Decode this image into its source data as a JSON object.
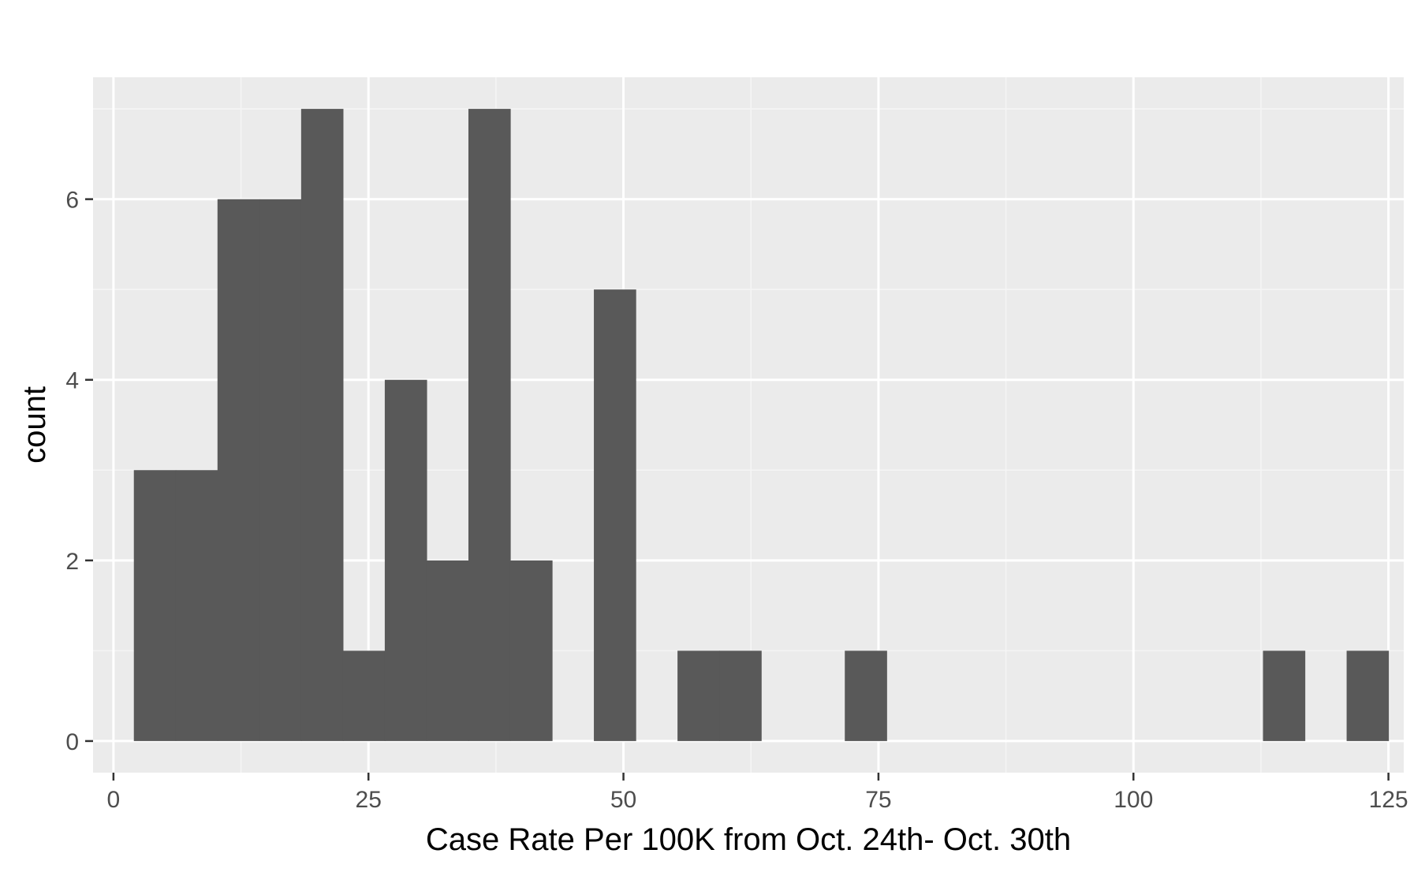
{
  "chart_data": {
    "type": "bar",
    "xlabel": "Case Rate Per 100K from Oct. 24th- Oct. 30th",
    "ylabel": "count",
    "xlim": [
      -2,
      126.5
    ],
    "ylim": [
      -0.35,
      7.35
    ],
    "x_ticks": [
      0,
      25,
      50,
      75,
      100,
      125
    ],
    "y_ticks": [
      0,
      2,
      4,
      6
    ],
    "x_tick_labels": [
      "0",
      "25",
      "50",
      "75",
      "100",
      "125"
    ],
    "y_tick_labels": [
      "0",
      "2",
      "4",
      "6"
    ],
    "x_minor_ticks": [
      12.5,
      37.5,
      62.5,
      87.5,
      112.5
    ],
    "y_minor_ticks": [
      1,
      3,
      5,
      7
    ],
    "grid": true,
    "bin_width": 4.1,
    "bins": [
      {
        "x0": 2.0,
        "x1": 6.1,
        "count": 3
      },
      {
        "x0": 6.1,
        "x1": 10.2,
        "count": 3
      },
      {
        "x0": 10.2,
        "x1": 14.3,
        "count": 6
      },
      {
        "x0": 14.3,
        "x1": 18.4,
        "count": 6
      },
      {
        "x0": 18.4,
        "x1": 22.5,
        "count": 7
      },
      {
        "x0": 22.5,
        "x1": 26.6,
        "count": 1
      },
      {
        "x0": 26.6,
        "x1": 30.7,
        "count": 4
      },
      {
        "x0": 30.7,
        "x1": 34.8,
        "count": 2
      },
      {
        "x0": 34.8,
        "x1": 38.9,
        "count": 7
      },
      {
        "x0": 38.9,
        "x1": 43.0,
        "count": 2
      },
      {
        "x0": 47.1,
        "x1": 51.2,
        "count": 5
      },
      {
        "x0": 55.3,
        "x1": 59.4,
        "count": 1
      },
      {
        "x0": 59.4,
        "x1": 63.5,
        "count": 1
      },
      {
        "x0": 71.7,
        "x1": 75.8,
        "count": 1
      },
      {
        "x0": 112.7,
        "x1": 116.8,
        "count": 1
      },
      {
        "x0": 120.9,
        "x1": 125.0,
        "count": 1
      }
    ],
    "colors": {
      "bar": "#595959",
      "panel": "#ebebeb",
      "grid_major": "#ffffff",
      "grid_minor": "#f5f5f5",
      "tick": "#333333"
    }
  }
}
